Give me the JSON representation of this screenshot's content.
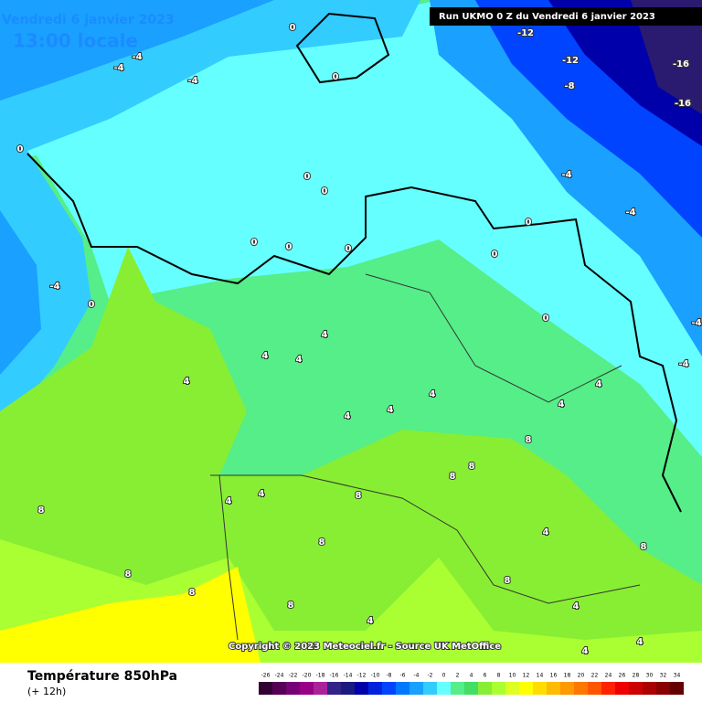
{
  "header": {
    "date": "Vendredi 6 janvier 2023",
    "time": "13:00 locale",
    "run": "Run UKMO 0 Z du Vendredi 6 janvier 2023"
  },
  "footer": {
    "title": "Température 850hPa",
    "step": "(+ 12h)",
    "copyright": "Copyright © 2023 Meteociel.fr - Source UK MetOffice"
  },
  "legend": {
    "values": [
      -26,
      -24,
      -22,
      -20,
      -18,
      -16,
      -14,
      -12,
      -10,
      -8,
      -6,
      -4,
      -2,
      0,
      2,
      4,
      6,
      8,
      10,
      12,
      14,
      16,
      18,
      20,
      22,
      24,
      26,
      28,
      30,
      32,
      34
    ],
    "colors": [
      "#330033",
      "#550055",
      "#770077",
      "#990088",
      "#aa2299",
      "#332288",
      "#1a1a80",
      "#0000aa",
      "#0022dd",
      "#0044ff",
      "#0077ff",
      "#1aa0ff",
      "#33ccff",
      "#66ffff",
      "#55ee88",
      "#44dd66",
      "#88ee33",
      "#aaff33",
      "#ddff22",
      "#ffff00",
      "#ffdd00",
      "#ffbb00",
      "#ff9900",
      "#ff7700",
      "#ff5500",
      "#ff2200",
      "#ee0000",
      "#cc0000",
      "#aa0000",
      "#880000",
      "#660000"
    ]
  },
  "contour_labels": [
    "0",
    "-4",
    "0",
    "-4",
    "-4",
    "-4",
    "0",
    "0",
    "0",
    "0",
    "0",
    "0",
    "0",
    "0",
    "0",
    "-12",
    "-12",
    "-8",
    "-16",
    "-16",
    "-4",
    "-4",
    "0",
    "4",
    "4",
    "4",
    "4",
    "4",
    "4",
    "4",
    "8",
    "8",
    "8",
    "8",
    "8",
    "4",
    "4",
    "4",
    "4",
    "4",
    "4",
    "8",
    "8",
    "8",
    "8",
    "4",
    "4",
    "-4",
    "-4",
    "4",
    "8",
    "8"
  ]
}
